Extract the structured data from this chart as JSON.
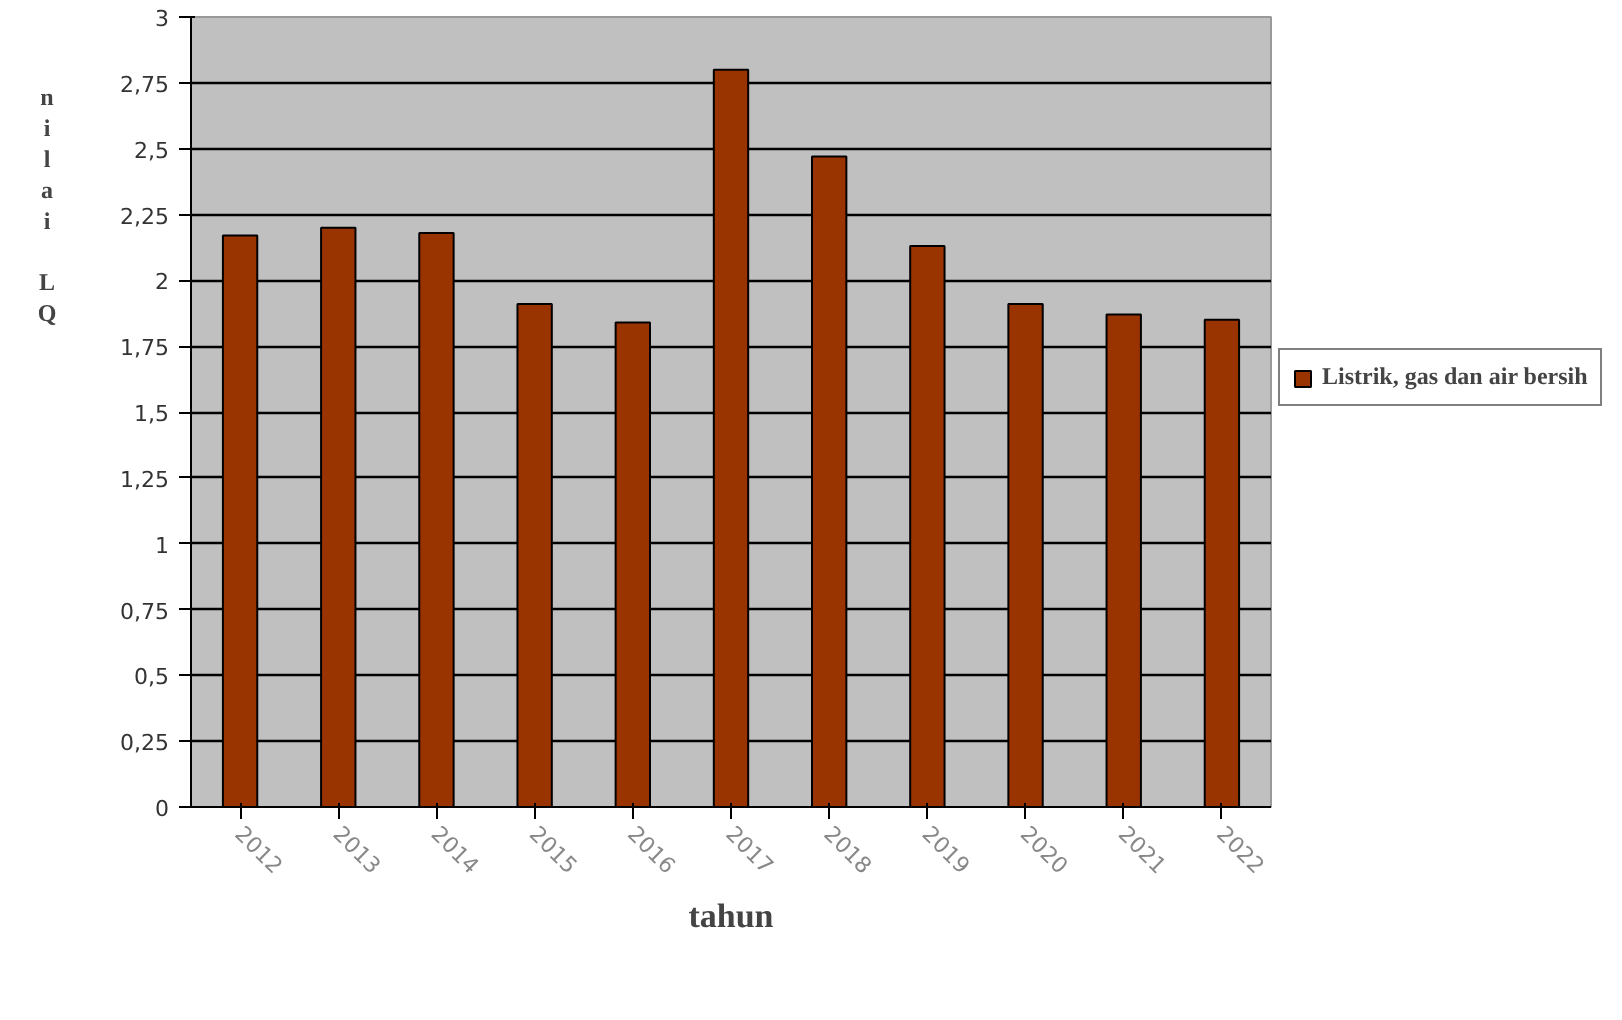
{
  "chart_data": {
    "type": "bar",
    "xlabel": "tahun",
    "ylabel": "nilai LQ",
    "categories": [
      "2012",
      "2013",
      "2014",
      "2015",
      "2016",
      "2017",
      "2018",
      "2019",
      "2020",
      "2021",
      "2022"
    ],
    "series": [
      {
        "name": "Listrik, gas dan air bersih",
        "color": "#993300",
        "values": [
          2.17,
          2.2,
          2.18,
          1.91,
          1.84,
          2.8,
          2.47,
          2.13,
          1.91,
          1.87,
          1.85
        ]
      }
    ],
    "ylim": [
      0,
      3
    ],
    "yticks": [
      0,
      {
        "value": 0.25,
        "label": "0,25"
      },
      {
        "value": 0.5,
        "label": "0,5"
      },
      {
        "value": 0.75,
        "label": "0,75"
      },
      1,
      {
        "value": 1.25,
        "label": "1,25"
      },
      {
        "value": 1.5,
        "label": "1,5"
      },
      {
        "value": 1.75,
        "label": "1,75"
      },
      2,
      {
        "value": 2.25,
        "label": "2,25"
      },
      {
        "value": 2.5,
        "label": "2,5"
      },
      {
        "value": 2.75,
        "label": "2,75"
      },
      3
    ],
    "grid": "y",
    "legend": "right"
  }
}
